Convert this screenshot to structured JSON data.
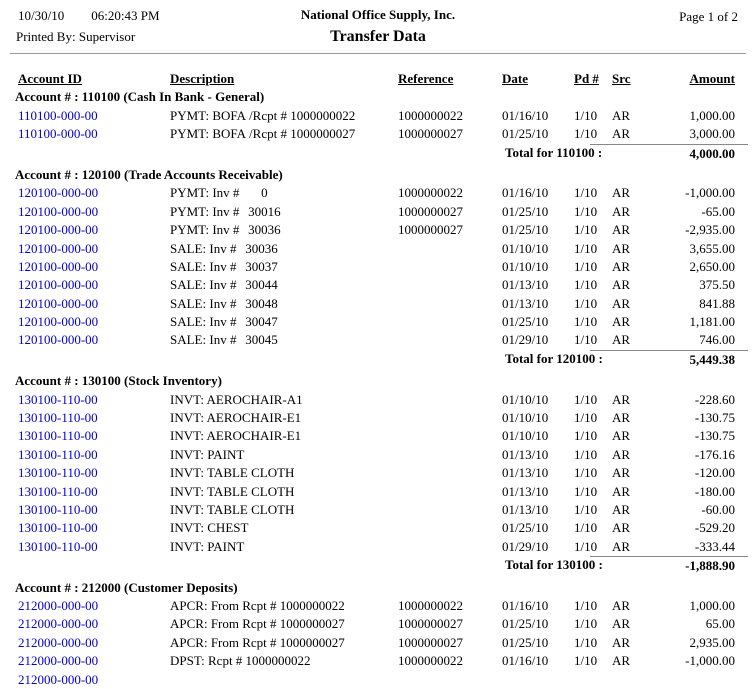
{
  "page_header": {
    "date": "10/30/10",
    "time": "06:20:43 PM",
    "company": "National Office Supply, Inc.",
    "title": "Transfer Data",
    "page": "Page 1 of 2",
    "printed_by": "Printed By: Supervisor"
  },
  "columns": {
    "account_id": "Account ID",
    "description": "Description",
    "reference": "Reference",
    "date": "Date",
    "pd": "Pd #",
    "src": "Src",
    "amount": "Amount"
  },
  "colors": {
    "link_blue": "#0000CC",
    "rule_gray": "#999999"
  },
  "sections": [
    {
      "header": "Account # : 110100 (Cash In Bank - General)",
      "rows": [
        {
          "account_id": "110100-000-00",
          "desc": "PYMT: BOFA",
          "desc2": "/Rcpt # 1000000022",
          "reference": "1000000022",
          "date": "01/16/10",
          "pd": "1/10",
          "src": "AR",
          "amount": "1,000.00"
        },
        {
          "account_id": "110100-000-00",
          "desc": "PYMT: BOFA",
          "desc2": "/Rcpt # 1000000027",
          "reference": "1000000027",
          "date": "01/25/10",
          "pd": "1/10",
          "src": "AR",
          "amount": "3,000.00"
        }
      ],
      "total_label": "Total for 110100 :",
      "total_amount": "4,000.00"
    },
    {
      "header": "Account # : 120100 (Trade Accounts Receivable)",
      "rows": [
        {
          "account_id": "120100-000-00",
          "desc": "PYMT: Inv #",
          "desc2": "0",
          "reference": "1000000022",
          "date": "01/16/10",
          "pd": "1/10",
          "src": "AR",
          "amount": "-1,000.00"
        },
        {
          "account_id": "120100-000-00",
          "desc": "PYMT: Inv #",
          "desc2": "30016",
          "reference": "1000000027",
          "date": "01/25/10",
          "pd": "1/10",
          "src": "AR",
          "amount": "-65.00"
        },
        {
          "account_id": "120100-000-00",
          "desc": "PYMT: Inv #",
          "desc2": "30036",
          "reference": "1000000027",
          "date": "01/25/10",
          "pd": "1/10",
          "src": "AR",
          "amount": "-2,935.00"
        },
        {
          "account_id": "120100-000-00",
          "desc": "SALE: Inv #",
          "desc2": "30036",
          "reference": "",
          "date": "01/10/10",
          "pd": "1/10",
          "src": "AR",
          "amount": "3,655.00"
        },
        {
          "account_id": "120100-000-00",
          "desc": "SALE: Inv #",
          "desc2": "30037",
          "reference": "",
          "date": "01/10/10",
          "pd": "1/10",
          "src": "AR",
          "amount": "2,650.00"
        },
        {
          "account_id": "120100-000-00",
          "desc": "SALE: Inv #",
          "desc2": "30044",
          "reference": "",
          "date": "01/13/10",
          "pd": "1/10",
          "src": "AR",
          "amount": "375.50"
        },
        {
          "account_id": "120100-000-00",
          "desc": "SALE: Inv #",
          "desc2": "30048",
          "reference": "",
          "date": "01/13/10",
          "pd": "1/10",
          "src": "AR",
          "amount": "841.88"
        },
        {
          "account_id": "120100-000-00",
          "desc": "SALE: Inv #",
          "desc2": "30047",
          "reference": "",
          "date": "01/25/10",
          "pd": "1/10",
          "src": "AR",
          "amount": "1,181.00"
        },
        {
          "account_id": "120100-000-00",
          "desc": "SALE: Inv #",
          "desc2": "30045",
          "reference": "",
          "date": "01/29/10",
          "pd": "1/10",
          "src": "AR",
          "amount": "746.00"
        }
      ],
      "total_label": "Total for 120100 :",
      "total_amount": "5,449.38"
    },
    {
      "header": "Account # : 130100 (Stock Inventory)",
      "rows": [
        {
          "account_id": "130100-110-00",
          "desc": "INVT: AEROCHAIR-A1",
          "desc2": "",
          "reference": "",
          "date": "01/10/10",
          "pd": "1/10",
          "src": "AR",
          "amount": "-228.60"
        },
        {
          "account_id": "130100-110-00",
          "desc": "INVT: AEROCHAIR-E1",
          "desc2": "",
          "reference": "",
          "date": "01/10/10",
          "pd": "1/10",
          "src": "AR",
          "amount": "-130.75"
        },
        {
          "account_id": "130100-110-00",
          "desc": "INVT: AEROCHAIR-E1",
          "desc2": "",
          "reference": "",
          "date": "01/10/10",
          "pd": "1/10",
          "src": "AR",
          "amount": "-130.75"
        },
        {
          "account_id": "130100-110-00",
          "desc": "INVT: PAINT",
          "desc2": "",
          "reference": "",
          "date": "01/13/10",
          "pd": "1/10",
          "src": "AR",
          "amount": "-176.16"
        },
        {
          "account_id": "130100-110-00",
          "desc": "INVT: TABLE CLOTH",
          "desc2": "",
          "reference": "",
          "date": "01/13/10",
          "pd": "1/10",
          "src": "AR",
          "amount": "-120.00"
        },
        {
          "account_id": "130100-110-00",
          "desc": "INVT: TABLE CLOTH",
          "desc2": "",
          "reference": "",
          "date": "01/13/10",
          "pd": "1/10",
          "src": "AR",
          "amount": "-180.00"
        },
        {
          "account_id": "130100-110-00",
          "desc": "INVT: TABLE CLOTH",
          "desc2": "",
          "reference": "",
          "date": "01/13/10",
          "pd": "1/10",
          "src": "AR",
          "amount": "-60.00"
        },
        {
          "account_id": "130100-110-00",
          "desc": "INVT: CHEST",
          "desc2": "",
          "reference": "",
          "date": "01/25/10",
          "pd": "1/10",
          "src": "AR",
          "amount": "-529.20"
        },
        {
          "account_id": "130100-110-00",
          "desc": "INVT: PAINT",
          "desc2": "",
          "reference": "",
          "date": "01/29/10",
          "pd": "1/10",
          "src": "AR",
          "amount": "-333.44"
        }
      ],
      "total_label": "Total for 130100 :",
      "total_amount": "-1,888.90"
    },
    {
      "header": "Account # : 212000 (Customer Deposits)",
      "rows": [
        {
          "account_id": "212000-000-00",
          "desc": "APCR: From Rcpt # 1000000022",
          "desc2": "",
          "reference": "1000000022",
          "date": "01/16/10",
          "pd": "1/10",
          "src": "AR",
          "amount": "1,000.00"
        },
        {
          "account_id": "212000-000-00",
          "desc": "APCR: From Rcpt # 1000000027",
          "desc2": "",
          "reference": "1000000027",
          "date": "01/25/10",
          "pd": "1/10",
          "src": "AR",
          "amount": "65.00"
        },
        {
          "account_id": "212000-000-00",
          "desc": "APCR: From Rcpt # 1000000027",
          "desc2": "",
          "reference": "1000000027",
          "date": "01/25/10",
          "pd": "1/10",
          "src": "AR",
          "amount": "2,935.00"
        },
        {
          "account_id": "212000-000-00",
          "desc": "DPST: Rcpt # 1000000022",
          "desc2": "",
          "reference": "1000000022",
          "date": "01/16/10",
          "pd": "1/10",
          "src": "AR",
          "amount": "-1,000.00"
        },
        {
          "account_id": "212000-000-00",
          "desc": "",
          "desc2": "",
          "reference": "",
          "date": "",
          "pd": "",
          "src": "",
          "amount": ""
        }
      ],
      "total_label": "",
      "total_amount": ""
    }
  ]
}
